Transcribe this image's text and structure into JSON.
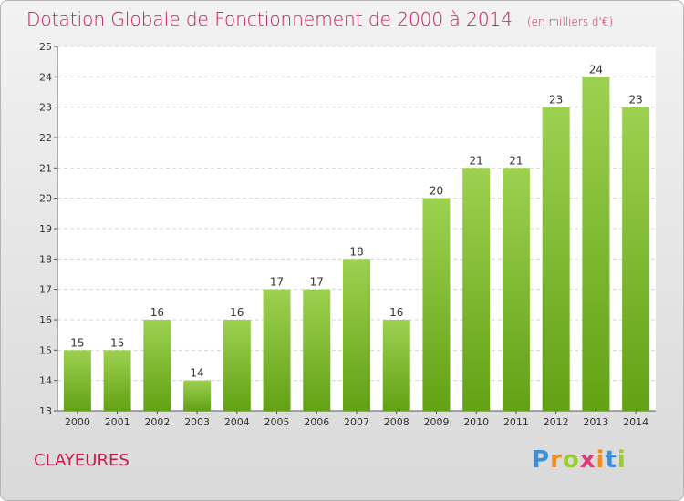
{
  "header": {
    "title": "Dotation Globale de Fonctionnement de 2000 à 2014",
    "unit": "(en milliers d'€)"
  },
  "footer": {
    "location": "CLAYEURES",
    "logo": [
      "P",
      "r",
      "o",
      "x",
      "i",
      "t",
      "i"
    ]
  },
  "colors": {
    "title": "#c8174d",
    "bar_light": "#9dd150",
    "bar_dark": "#62a114",
    "logo": [
      "#3b8fd6",
      "#f28e1c",
      "#9acd32",
      "#e03a7a",
      "#f28e1c",
      "#3b8fd6",
      "#9acd32"
    ]
  },
  "chart_data": {
    "type": "bar",
    "categories": [
      "2000",
      "2001",
      "2002",
      "2003",
      "2004",
      "2005",
      "2006",
      "2007",
      "2008",
      "2009",
      "2010",
      "2011",
      "2012",
      "2013",
      "2014"
    ],
    "values": [
      15,
      15,
      16,
      14,
      16,
      17,
      17,
      18,
      16,
      20,
      21,
      21,
      23,
      24,
      23
    ],
    "ylim": [
      13,
      25
    ],
    "yticks": [
      13,
      14,
      15,
      16,
      17,
      18,
      19,
      20,
      21,
      22,
      23,
      24,
      25
    ],
    "grid": true,
    "data_labels": true
  }
}
